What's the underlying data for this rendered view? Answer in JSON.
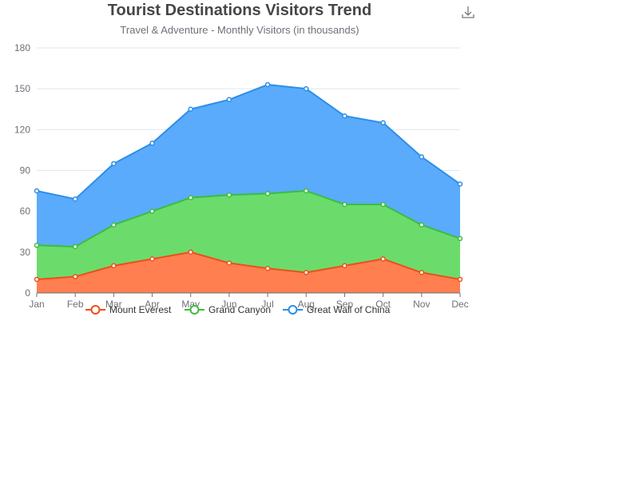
{
  "toolbar": {
    "download_icon": "download-icon"
  },
  "chart_data": {
    "type": "area",
    "stacked": true,
    "title": "Tourist Destinations Visitors Trend",
    "subtitle": "Travel & Adventure - Monthly Visitors (in thousands)",
    "xlabel": "",
    "ylabel": "",
    "categories": [
      "Jan",
      "Feb",
      "Mar",
      "Apr",
      "May",
      "Jun",
      "Jul",
      "Aug",
      "Sep",
      "Oct",
      "Nov",
      "Dec"
    ],
    "ylim": [
      0,
      180
    ],
    "yticks": [
      0,
      30,
      60,
      90,
      120,
      150,
      180
    ],
    "grid": true,
    "legend_position": "bottom",
    "series": [
      {
        "name": "Mount Everest",
        "color": "#ee4e1a",
        "values": [
          10,
          12,
          20,
          25,
          30,
          22,
          18,
          15,
          20,
          25,
          15,
          10
        ]
      },
      {
        "name": "Grand Canyon",
        "color": "#3cbd3c",
        "values": [
          25,
          22,
          30,
          35,
          40,
          50,
          55,
          60,
          45,
          40,
          35,
          30
        ]
      },
      {
        "name": "Great Wall of China",
        "color": "#2c8ee8",
        "values": [
          40,
          35,
          45,
          50,
          65,
          70,
          80,
          75,
          65,
          60,
          50,
          40
        ]
      }
    ],
    "area_colors": [
      "#ff7f50",
      "#6bdc6b",
      "#5aabfb"
    ]
  }
}
